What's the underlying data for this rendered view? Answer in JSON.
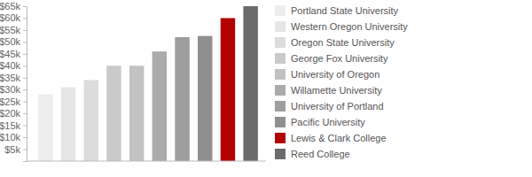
{
  "chart_data": {
    "type": "bar",
    "categories": [
      "Portland State University",
      "Western Oregon University",
      "Oregon State University",
      "George Fox University",
      "University of Oregon",
      "Willamette University",
      "University of Portland",
      "Pacific University",
      "Lewis & Clark College",
      "Reed College"
    ],
    "values": [
      28000,
      31000,
      34000,
      40000,
      40000,
      46000,
      52000,
      52500,
      60000,
      65000
    ],
    "colors": [
      "#ededed",
      "#e6e6e6",
      "#dcdcdc",
      "#cacaca",
      "#c2c2c2",
      "#ababab",
      "#9e9e9e",
      "#8f8f8f",
      "#b30000",
      "#6b6b6b"
    ],
    "ylim": [
      0,
      65000
    ],
    "yticks": [
      {
        "value": 5000,
        "label": "$5k"
      },
      {
        "value": 10000,
        "label": "$10k"
      },
      {
        "value": 15000,
        "label": "$15k"
      },
      {
        "value": 20000,
        "label": "$20k"
      },
      {
        "value": 25000,
        "label": "$25k"
      },
      {
        "value": 30000,
        "label": "$30k"
      },
      {
        "value": 35000,
        "label": "$35k"
      },
      {
        "value": 40000,
        "label": "$40k"
      },
      {
        "value": 45000,
        "label": "$45k"
      },
      {
        "value": 50000,
        "label": "$50k"
      },
      {
        "value": 55000,
        "label": "$55k"
      },
      {
        "value": 60000,
        "label": "$60k"
      },
      {
        "value": 65000,
        "label": "$65k"
      }
    ],
    "grid": false,
    "legend": "right",
    "tick_labels": "y"
  }
}
